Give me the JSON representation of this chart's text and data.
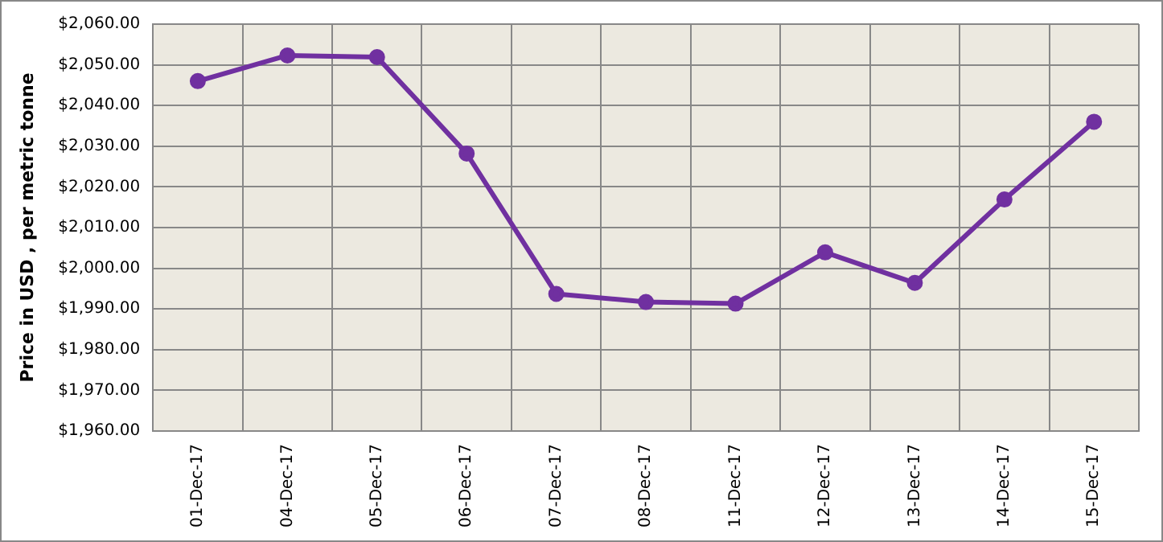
{
  "chart_data": {
    "type": "line",
    "ylabel": "Price in USD , per metric tonne",
    "categories": [
      "01-Dec-17",
      "04-Dec-17",
      "05-Dec-17",
      "06-Dec-17",
      "07-Dec-17",
      "08-Dec-17",
      "11-Dec-17",
      "12-Dec-17",
      "13-Dec-17",
      "14-Dec-17",
      "15-Dec-17"
    ],
    "series": [
      {
        "color": "#7030a0",
        "values": [
          2046.0,
          2052.3,
          2051.9,
          2028.2,
          1993.7,
          1991.7,
          1991.3,
          2003.9,
          1996.4,
          2016.9,
          2036.0
        ]
      }
    ],
    "ylim": [
      1960,
      2060
    ],
    "yticks": [
      {
        "value": 1960,
        "label": "$1,960.00"
      },
      {
        "value": 1970,
        "label": "$1,970.00"
      },
      {
        "value": 1980,
        "label": "$1,980.00"
      },
      {
        "value": 1990,
        "label": "$1,990.00"
      },
      {
        "value": 2000,
        "label": "$2,000.00"
      },
      {
        "value": 2010,
        "label": "$2,010.00"
      },
      {
        "value": 2020,
        "label": "$2,020.00"
      },
      {
        "value": 2030,
        "label": "$2,030.00"
      },
      {
        "value": 2040,
        "label": "$2,040.00"
      },
      {
        "value": 2050,
        "label": "$2,050.00"
      },
      {
        "value": 2060,
        "label": "$2,060.00"
      }
    ],
    "grid": true,
    "legend": false,
    "marker": "circle",
    "line_style": "solid"
  }
}
